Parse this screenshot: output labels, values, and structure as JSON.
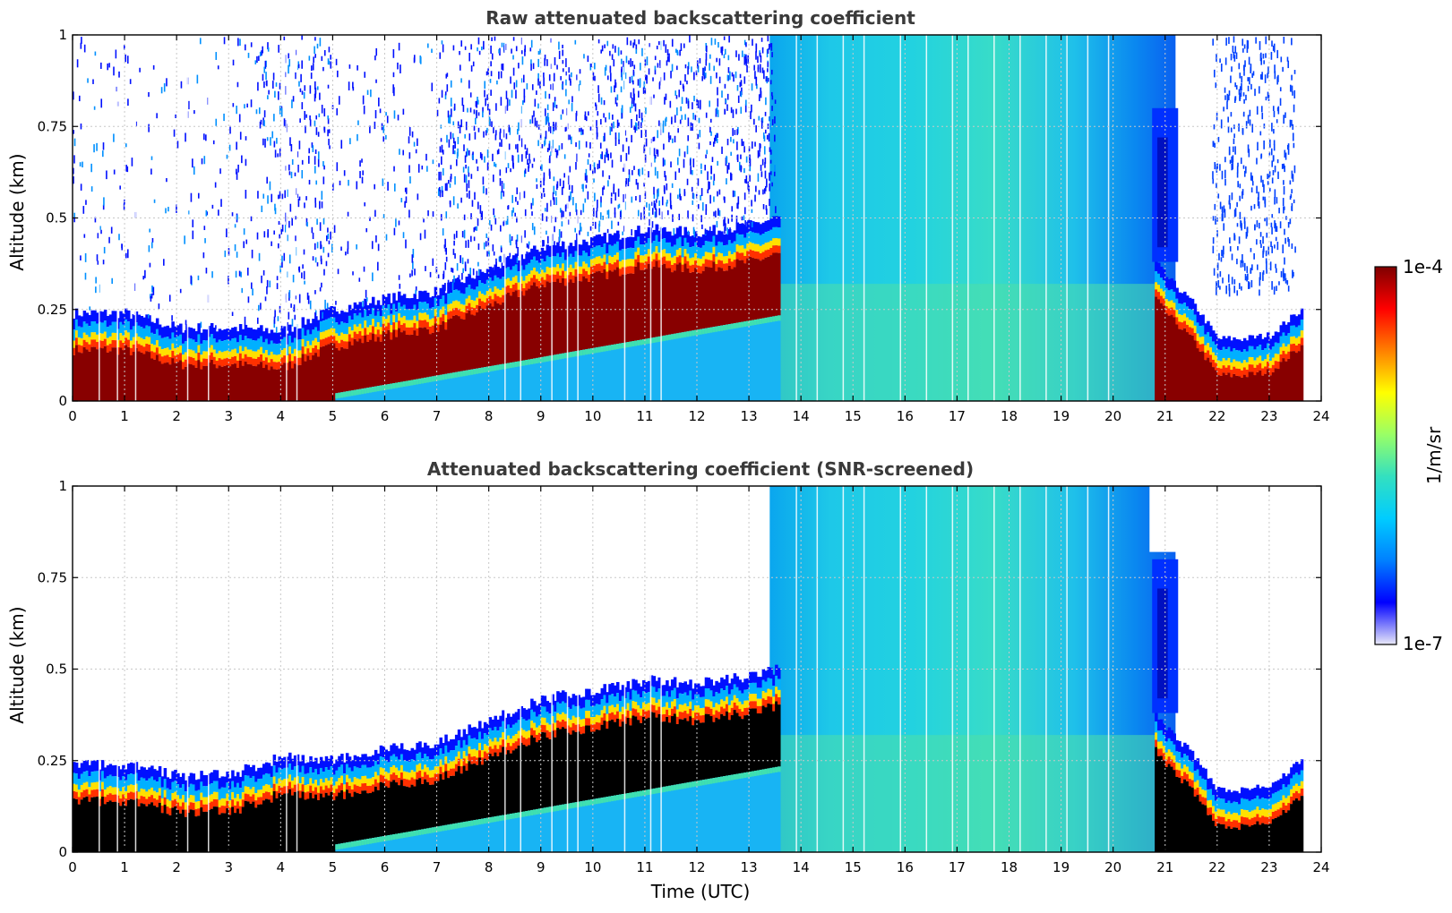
{
  "chart_data": [
    {
      "type": "heatmap",
      "title": "Raw attenuated backscattering coefficient",
      "ylabel": "Altitude (km)",
      "xlabel": "",
      "xlim": [
        0,
        24
      ],
      "ylim": [
        0,
        1
      ],
      "x_ticks": [
        "0",
        "1",
        "2",
        "3",
        "4",
        "5",
        "6",
        "7",
        "8",
        "9",
        "10",
        "11",
        "12",
        "13",
        "14",
        "15",
        "16",
        "17",
        "18",
        "19",
        "20",
        "21",
        "22",
        "23",
        "24"
      ],
      "y_ticks": [
        {
          "v": 0,
          "label": "0"
        },
        {
          "v": 0.25,
          "label": "0.25"
        },
        {
          "v": 0.5,
          "label": "0.5"
        },
        {
          "v": 0.75,
          "label": "0.75"
        },
        {
          "v": 1,
          "label": "1"
        }
      ],
      "grid": true,
      "screened": false,
      "layer_top_km": [
        {
          "t": 0,
          "z": 0.24
        },
        {
          "t": 1,
          "z": 0.24
        },
        {
          "t": 2,
          "z": 0.2
        },
        {
          "t": 3,
          "z": 0.2
        },
        {
          "t": 4,
          "z": 0.19
        },
        {
          "t": 5,
          "z": 0.25
        },
        {
          "t": 6,
          "z": 0.28
        },
        {
          "t": 7,
          "z": 0.3
        },
        {
          "t": 8,
          "z": 0.36
        },
        {
          "t": 9,
          "z": 0.42
        },
        {
          "t": 10,
          "z": 0.44
        },
        {
          "t": 11,
          "z": 0.47
        },
        {
          "t": 12,
          "z": 0.46
        },
        {
          "t": 13,
          "z": 0.48
        },
        {
          "t": 13.5,
          "z": 0.5
        }
      ],
      "late_layer_top_km": [
        {
          "t": 20.8,
          "z": 0.38
        },
        {
          "t": 21,
          "z": 0.34
        },
        {
          "t": 21.5,
          "z": 0.27
        },
        {
          "t": 22,
          "z": 0.17
        },
        {
          "t": 22.5,
          "z": 0.17
        },
        {
          "t": 23,
          "z": 0.18
        },
        {
          "t": 23.6,
          "z": 0.25
        }
      ]
    },
    {
      "type": "heatmap",
      "title": "Attenuated backscattering coefficient (SNR-screened)",
      "ylabel": "Altitude (km)",
      "xlabel": "Time (UTC)",
      "xlim": [
        0,
        24
      ],
      "ylim": [
        0,
        1
      ],
      "x_ticks": [
        "0",
        "1",
        "2",
        "3",
        "4",
        "5",
        "6",
        "7",
        "8",
        "9",
        "10",
        "11",
        "12",
        "13",
        "14",
        "15",
        "16",
        "17",
        "18",
        "19",
        "20",
        "21",
        "22",
        "23",
        "24"
      ],
      "y_ticks": [
        {
          "v": 0,
          "label": "0"
        },
        {
          "v": 0.25,
          "label": "0.25"
        },
        {
          "v": 0.5,
          "label": "0.5"
        },
        {
          "v": 0.75,
          "label": "0.75"
        },
        {
          "v": 1,
          "label": "1"
        }
      ],
      "grid": true,
      "screened": true,
      "layer_top_km": [
        {
          "t": 0,
          "z": 0.24
        },
        {
          "t": 1,
          "z": 0.24
        },
        {
          "t": 2,
          "z": 0.21
        },
        {
          "t": 3,
          "z": 0.21
        },
        {
          "t": 4,
          "z": 0.26
        },
        {
          "t": 5,
          "z": 0.25
        },
        {
          "t": 6,
          "z": 0.28
        },
        {
          "t": 7,
          "z": 0.3
        },
        {
          "t": 8,
          "z": 0.36
        },
        {
          "t": 9,
          "z": 0.42
        },
        {
          "t": 10,
          "z": 0.44
        },
        {
          "t": 11,
          "z": 0.47
        },
        {
          "t": 12,
          "z": 0.46
        },
        {
          "t": 13,
          "z": 0.48
        },
        {
          "t": 13.5,
          "z": 0.5
        }
      ],
      "late_layer_top_km": [
        {
          "t": 20.8,
          "z": 0.38
        },
        {
          "t": 21,
          "z": 0.34
        },
        {
          "t": 21.5,
          "z": 0.27
        },
        {
          "t": 22,
          "z": 0.17
        },
        {
          "t": 22.5,
          "z": 0.17
        },
        {
          "t": 23,
          "z": 0.18
        },
        {
          "t": 23.6,
          "z": 0.25
        }
      ]
    }
  ],
  "colorbar": {
    "min_label": "1e-7",
    "max_label": "1e-4",
    "label": "1/m/sr",
    "colors": [
      "#e8e8f8",
      "#0000ff",
      "#0080ff",
      "#00ccff",
      "#33e0c0",
      "#99ff66",
      "#ffff00",
      "#ff8000",
      "#ff0000",
      "#7f0000"
    ]
  }
}
